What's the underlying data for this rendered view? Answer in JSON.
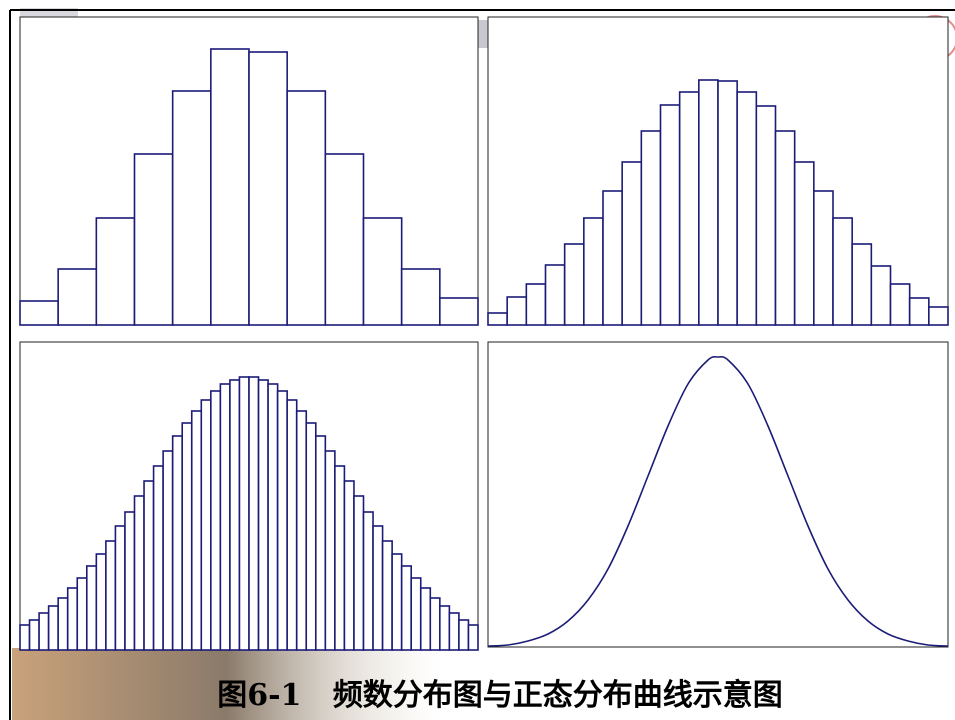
{
  "chart_data": [
    {
      "type": "bar",
      "color": "#1c1c78",
      "ylim": [
        0,
        308
      ],
      "values": [
        24,
        56,
        107,
        171,
        234,
        276,
        273,
        234,
        171,
        107,
        56,
        27
      ]
    },
    {
      "type": "bar",
      "color": "#1c1c78",
      "ylim": [
        0,
        308
      ],
      "values": [
        12,
        28,
        41,
        60,
        81,
        107,
        134,
        163,
        194,
        220,
        233,
        245,
        244,
        233,
        219,
        194,
        163,
        134,
        107,
        81,
        59,
        41,
        27,
        18
      ]
    },
    {
      "type": "bar",
      "color": "#1c1c78",
      "ylim": [
        0,
        308
      ],
      "values": [
        25,
        30,
        37,
        44,
        52,
        62,
        72,
        84,
        96,
        109,
        124,
        138,
        154,
        169,
        184,
        199,
        214,
        227,
        239,
        250,
        259,
        266,
        270,
        273,
        273,
        270,
        266,
        259,
        250,
        239,
        227,
        214,
        199,
        184,
        169,
        154,
        138,
        124,
        109,
        96,
        84,
        72,
        62,
        52,
        44,
        37,
        30,
        25
      ]
    },
    {
      "type": "line",
      "color": "#1c1c78",
      "xlim": [
        0,
        460
      ],
      "ylim": [
        0,
        305
      ],
      "x": [
        0,
        20,
        40,
        60,
        80,
        100,
        120,
        140,
        160,
        180,
        200,
        220,
        230,
        240,
        260,
        280,
        300,
        320,
        340,
        360,
        380,
        400,
        420,
        440,
        460
      ],
      "values": [
        1,
        2,
        6,
        13,
        26,
        47,
        78,
        121,
        171,
        221,
        263,
        287,
        290,
        287,
        263,
        221,
        171,
        121,
        78,
        47,
        26,
        13,
        6,
        2,
        1
      ]
    }
  ],
  "caption": "图6-1   频数分布图与正态分布曲线示意图"
}
